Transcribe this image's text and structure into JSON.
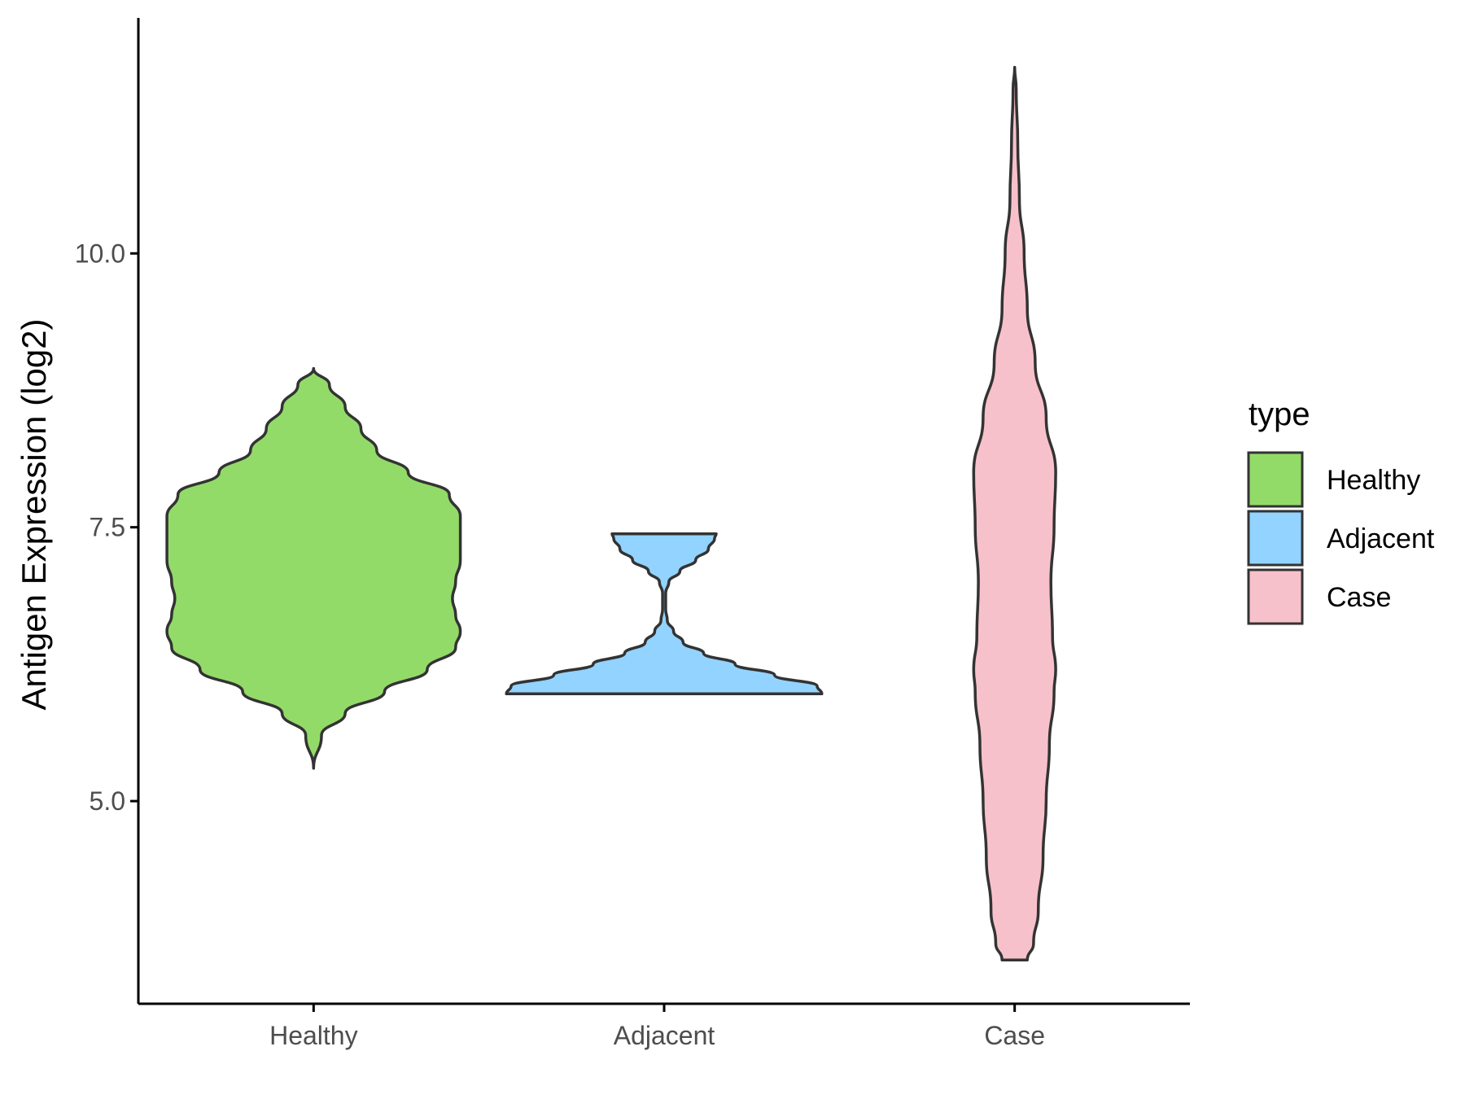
{
  "chart_data": {
    "type": "violin",
    "xlabel": "",
    "ylabel": "Antigen Expression (log2)",
    "ylim": [
      3.15,
      12.15
    ],
    "yticks": [
      "5.0",
      "7.5",
      "10.0"
    ],
    "ytick_values": [
      5.0,
      7.5,
      10.0
    ],
    "categories": [
      "Healthy",
      "Adjacent",
      "Case"
    ],
    "grid": false,
    "legend": {
      "title": "type",
      "placement": "right",
      "entries": [
        "Healthy",
        "Adjacent",
        "Case"
      ]
    },
    "series": [
      {
        "category": "Healthy",
        "color": "#93DB69",
        "min": 5.3,
        "max": 8.95,
        "density": [
          [
            5.3,
            0.0
          ],
          [
            5.6,
            0.05
          ],
          [
            5.8,
            0.2
          ],
          [
            6.0,
            0.45
          ],
          [
            6.2,
            0.72
          ],
          [
            6.4,
            0.9
          ],
          [
            6.55,
            0.93
          ],
          [
            6.7,
            0.9
          ],
          [
            6.85,
            0.88
          ],
          [
            7.0,
            0.9
          ],
          [
            7.2,
            0.93
          ],
          [
            7.4,
            0.93
          ],
          [
            7.6,
            0.93
          ],
          [
            7.8,
            0.86
          ],
          [
            8.0,
            0.6
          ],
          [
            8.2,
            0.4
          ],
          [
            8.4,
            0.3
          ],
          [
            8.6,
            0.2
          ],
          [
            8.8,
            0.1
          ],
          [
            8.95,
            0.0
          ]
        ]
      },
      {
        "category": "Adjacent",
        "color": "#92D3FF",
        "min": 5.98,
        "max": 7.44,
        "density": [
          [
            5.98,
            1.0
          ],
          [
            6.05,
            0.97
          ],
          [
            6.15,
            0.7
          ],
          [
            6.25,
            0.45
          ],
          [
            6.35,
            0.25
          ],
          [
            6.45,
            0.12
          ],
          [
            6.55,
            0.06
          ],
          [
            6.65,
            0.02
          ],
          [
            6.75,
            0.01
          ],
          [
            6.9,
            0.01
          ],
          [
            7.0,
            0.03
          ],
          [
            7.1,
            0.1
          ],
          [
            7.2,
            0.2
          ],
          [
            7.3,
            0.28
          ],
          [
            7.4,
            0.32
          ],
          [
            7.44,
            0.33
          ]
        ]
      },
      {
        "category": "Case",
        "color": "#F7C1CB",
        "min": 3.55,
        "max": 11.7,
        "density": [
          [
            3.55,
            0.08
          ],
          [
            3.7,
            0.12
          ],
          [
            4.0,
            0.15
          ],
          [
            4.5,
            0.18
          ],
          [
            5.0,
            0.2
          ],
          [
            5.5,
            0.22
          ],
          [
            6.0,
            0.25
          ],
          [
            6.2,
            0.26
          ],
          [
            6.5,
            0.24
          ],
          [
            7.0,
            0.23
          ],
          [
            7.5,
            0.25
          ],
          [
            8.0,
            0.26
          ],
          [
            8.5,
            0.2
          ],
          [
            9.0,
            0.13
          ],
          [
            9.5,
            0.08
          ],
          [
            10.0,
            0.06
          ],
          [
            10.5,
            0.03
          ],
          [
            11.0,
            0.02
          ],
          [
            11.5,
            0.01
          ],
          [
            11.7,
            0.0
          ]
        ]
      }
    ]
  }
}
